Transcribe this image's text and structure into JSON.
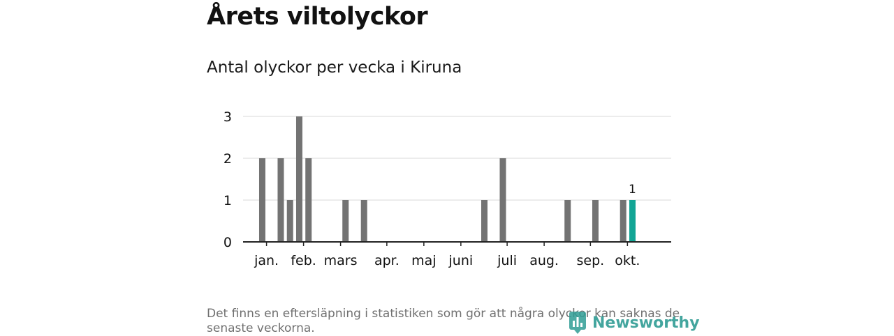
{
  "header": {
    "title": "Årets viltolyckor",
    "subtitle": "Antal olyckor per vecka i Kiruna"
  },
  "footer": {
    "note": "Det finns en eftersläpning i statistiken som gör att några olyckor kan saknas de senaste veckorna.",
    "brand": "Newsworthy",
    "brand_icon": "newsworthy-logo-icon"
  },
  "colors": {
    "bar": "#737373",
    "highlight": "#12a595",
    "grid": "#d9d9d9",
    "axis": "#222222",
    "text": "#111111"
  },
  "chart_data": {
    "type": "bar",
    "xlabel": "",
    "ylabel": "",
    "ylim": [
      0,
      3
    ],
    "yticks": [
      0,
      1,
      2,
      3
    ],
    "grid": true,
    "month_labels": [
      "jan.",
      "feb.",
      "mars",
      "apr.",
      "maj",
      "juni",
      "juli",
      "aug.",
      "sep.",
      "okt."
    ],
    "month_start_weeks": [
      1,
      5,
      9,
      14,
      18,
      22,
      27,
      31,
      36,
      40
    ],
    "weeks": [
      1,
      2,
      3,
      4,
      5,
      6,
      7,
      8,
      9,
      10,
      11,
      12,
      13,
      14,
      15,
      16,
      17,
      18,
      19,
      20,
      21,
      22,
      23,
      24,
      25,
      26,
      27,
      28,
      29,
      30,
      31,
      32,
      33,
      34,
      35,
      36,
      37,
      38,
      39,
      40,
      41,
      42
    ],
    "values": [
      0,
      2,
      0,
      2,
      1,
      3,
      2,
      0,
      0,
      0,
      1,
      0,
      1,
      0,
      0,
      0,
      0,
      0,
      0,
      0,
      0,
      0,
      0,
      0,
      0,
      1,
      0,
      2,
      0,
      0,
      0,
      0,
      0,
      0,
      1,
      0,
      0,
      1,
      0,
      0,
      1,
      1
    ],
    "highlight_index": 41,
    "highlight_label": "1"
  }
}
